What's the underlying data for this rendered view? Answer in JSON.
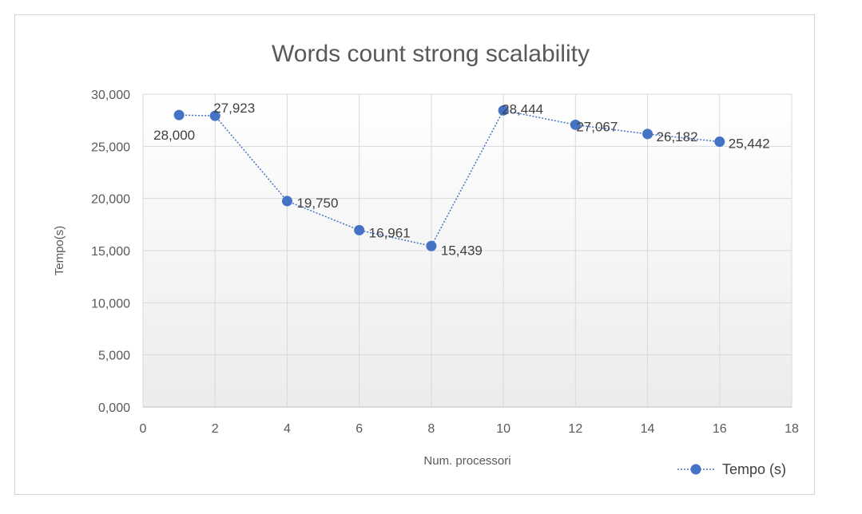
{
  "chart_data": {
    "type": "line",
    "title": "Words count strong scalability",
    "xlabel": "Num. processori",
    "ylabel": "Tempo(s)",
    "xlim": [
      0,
      18
    ],
    "ylim": [
      0,
      30000
    ],
    "x_ticks": [
      0,
      2,
      4,
      6,
      8,
      10,
      12,
      14,
      16,
      18
    ],
    "x_tick_labels": [
      "0",
      "2",
      "4",
      "6",
      "8",
      "10",
      "12",
      "14",
      "16",
      "18"
    ],
    "y_ticks": [
      0,
      5000,
      10000,
      15000,
      20000,
      25000,
      30000
    ],
    "y_tick_labels": [
      "0,000",
      "5,000",
      "10,000",
      "15,000",
      "20,000",
      "25,000",
      "30,000"
    ],
    "grid": true,
    "legend_position": "bottom-right",
    "series": [
      {
        "name": "Tempo (s)",
        "color": "#4472C4",
        "line_style": "dotted",
        "marker": "circle",
        "x": [
          1,
          2,
          4,
          6,
          8,
          10,
          12,
          14,
          16
        ],
        "y": [
          28000,
          27923,
          19750,
          16961,
          15439,
          28444,
          27067,
          26182,
          25442
        ],
        "labels": [
          "28,000",
          "27,923",
          "19,750",
          "16,961",
          "15,439",
          "28,444",
          "27,067",
          "26,182",
          "25,442"
        ]
      }
    ]
  }
}
